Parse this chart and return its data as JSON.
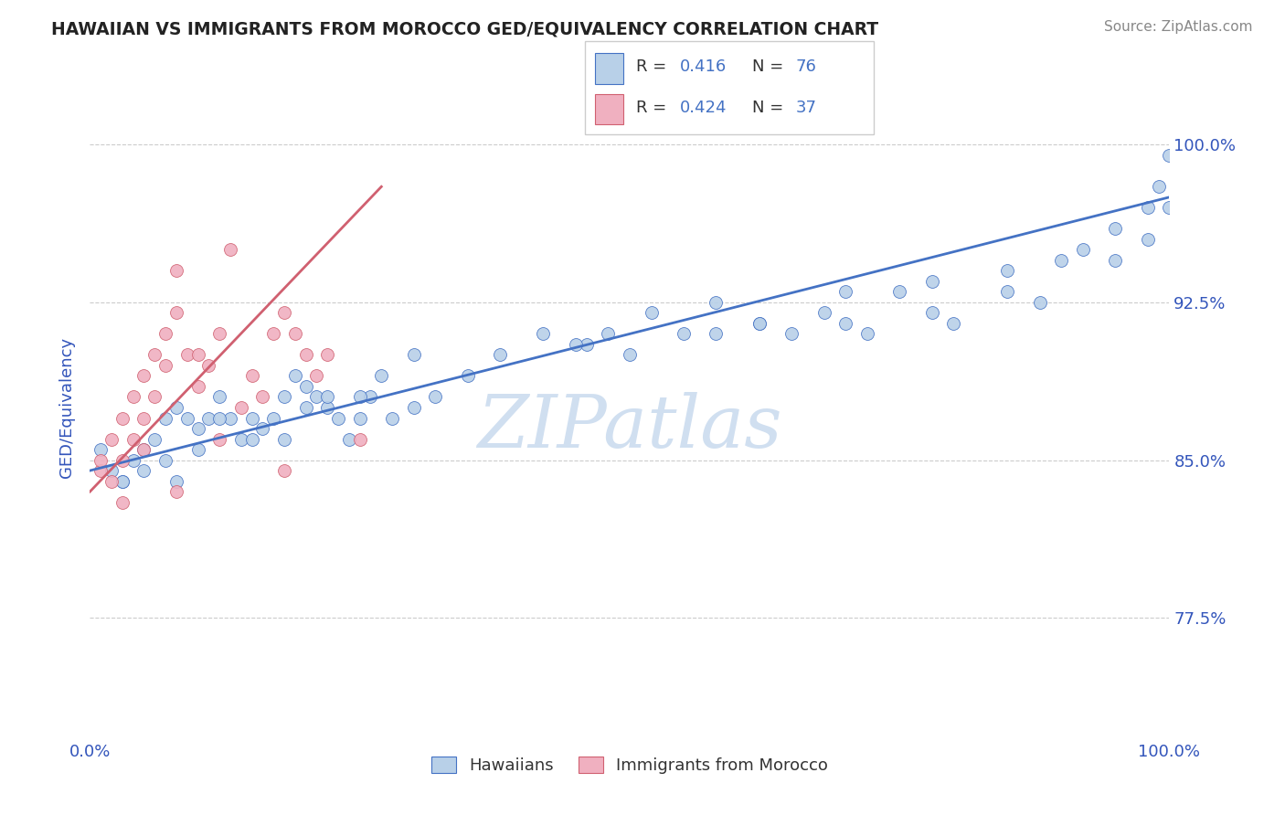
{
  "title": "HAWAIIAN VS IMMIGRANTS FROM MOROCCO GED/EQUIVALENCY CORRELATION CHART",
  "source_text": "Source: ZipAtlas.com",
  "ylabel": "GED/Equivalency",
  "xmin": 0.0,
  "xmax": 100.0,
  "ymin": 72.0,
  "ymax": 103.0,
  "yticks": [
    77.5,
    85.0,
    92.5,
    100.0
  ],
  "yticklabels": [
    "77.5%",
    "85.0%",
    "92.5%",
    "100.0%"
  ],
  "blue_color": "#b8d0e8",
  "pink_color": "#f0b0c0",
  "trend_blue_color": "#4472c4",
  "trend_pink_color": "#d06070",
  "label_color": "#3355bb",
  "watermark_color": "#d0dff0",
  "blue_scatter_x": [
    1,
    2,
    3,
    4,
    5,
    6,
    7,
    8,
    9,
    10,
    11,
    12,
    13,
    14,
    15,
    16,
    17,
    18,
    19,
    20,
    21,
    22,
    23,
    24,
    25,
    26,
    28,
    30,
    32,
    35,
    38,
    42,
    46,
    50,
    55,
    58,
    62,
    65,
    68,
    70,
    72,
    75,
    78,
    80,
    85,
    88,
    92,
    95,
    98,
    100,
    3,
    5,
    7,
    8,
    10,
    12,
    15,
    18,
    20,
    22,
    25,
    27,
    30,
    45,
    48,
    52,
    58,
    62,
    70,
    78,
    85,
    90,
    95,
    98,
    99,
    100
  ],
  "blue_scatter_y": [
    85.5,
    84.5,
    84,
    85,
    85.5,
    86,
    87,
    87.5,
    87,
    86.5,
    87,
    88,
    87,
    86,
    87,
    86.5,
    87,
    88,
    89,
    88.5,
    88,
    87.5,
    87,
    86,
    87,
    88,
    87,
    87.5,
    88,
    89,
    90,
    91,
    90.5,
    90,
    91,
    92.5,
    91.5,
    91,
    92,
    91.5,
    91,
    93,
    92,
    91.5,
    94,
    92.5,
    95,
    94.5,
    95.5,
    97,
    84,
    84.5,
    85,
    84,
    85.5,
    87,
    86,
    86,
    87.5,
    88,
    88,
    89,
    90,
    90.5,
    91,
    92,
    91,
    91.5,
    93,
    93.5,
    93,
    94.5,
    96,
    97,
    98,
    99.5
  ],
  "pink_scatter_x": [
    1,
    1,
    2,
    2,
    3,
    3,
    4,
    4,
    5,
    5,
    6,
    6,
    7,
    7,
    8,
    9,
    10,
    10,
    11,
    12,
    13,
    14,
    15,
    16,
    17,
    18,
    19,
    20,
    21,
    22,
    3,
    5,
    8,
    12,
    18,
    25,
    8
  ],
  "pink_scatter_y": [
    84.5,
    85,
    84,
    86,
    85,
    87,
    86,
    88,
    87,
    89,
    88,
    90,
    89.5,
    91,
    92,
    90,
    88.5,
    90,
    89.5,
    91,
    95,
    87.5,
    89,
    88,
    91,
    92,
    91,
    90,
    89,
    90,
    83,
    85.5,
    94,
    86,
    84.5,
    86,
    83.5
  ],
  "blue_trend_x0": 0,
  "blue_trend_x1": 100,
  "blue_trend_y0": 84.5,
  "blue_trend_y1": 97.5,
  "pink_trend_x0": 0,
  "pink_trend_x1": 27,
  "pink_trend_y0": 83.5,
  "pink_trend_y1": 98.0
}
